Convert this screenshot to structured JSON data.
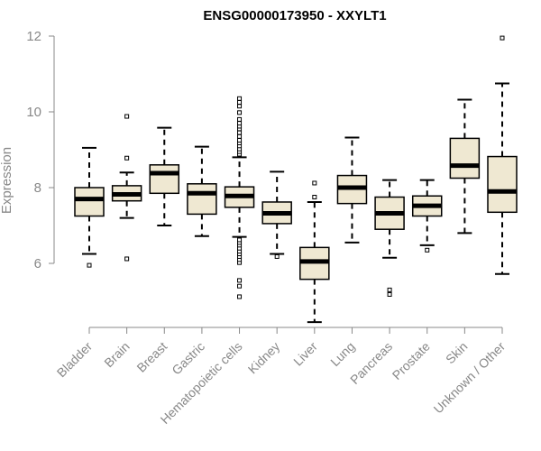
{
  "chart_data": {
    "type": "boxplot",
    "title": "ENSG00000173950 - XXYLT1",
    "xlabel": "",
    "ylabel": "Expression",
    "ylim": [
      4.4,
      12.2
    ],
    "yticks": [
      6,
      8,
      10,
      12
    ],
    "grid": false,
    "colors": {
      "box_fill": "#efe8d2",
      "box_stroke": "#000000",
      "median": "#000000",
      "axis": "#888888",
      "tick_text": "#888888"
    },
    "categories": [
      "Bladder",
      "Brain",
      "Breast",
      "Gastric",
      "Hematopoietic cells",
      "Kidney",
      "Liver",
      "Lung",
      "Pancreas",
      "Prostate",
      "Skin",
      "Unknown / Other"
    ],
    "boxes": [
      {
        "category": "Bladder",
        "whisker_low": 6.25,
        "q1": 7.25,
        "median": 7.7,
        "q3": 8.0,
        "whisker_high": 9.05,
        "outliers": [
          5.95
        ]
      },
      {
        "category": "Brain",
        "whisker_low": 7.2,
        "q1": 7.65,
        "median": 7.82,
        "q3": 8.05,
        "whisker_high": 8.4,
        "outliers": [
          6.12,
          8.78,
          9.88
        ]
      },
      {
        "category": "Breast",
        "whisker_low": 7.0,
        "q1": 7.85,
        "median": 8.38,
        "q3": 8.6,
        "whisker_high": 9.58,
        "outliers": []
      },
      {
        "category": "Gastric",
        "whisker_low": 6.72,
        "q1": 7.3,
        "median": 7.85,
        "q3": 8.1,
        "whisker_high": 9.08,
        "outliers": []
      },
      {
        "category": "Hematopoietic cells",
        "whisker_low": 6.7,
        "q1": 7.48,
        "median": 7.78,
        "q3": 8.02,
        "whisker_high": 8.8,
        "outliers": [
          5.12,
          5.4,
          5.55,
          6.02,
          6.1,
          6.18,
          6.25,
          6.32,
          6.4,
          6.48,
          6.55,
          6.62,
          8.88,
          8.95,
          9.02,
          9.1,
          9.18,
          9.25,
          9.35,
          9.45,
          9.55,
          9.62,
          9.7,
          9.8,
          9.98,
          10.15,
          10.25,
          10.35
        ]
      },
      {
        "category": "Kidney",
        "whisker_low": 6.25,
        "q1": 7.05,
        "median": 7.32,
        "q3": 7.62,
        "whisker_high": 8.42,
        "outliers": [
          6.18
        ]
      },
      {
        "category": "Liver",
        "whisker_low": 4.45,
        "q1": 5.58,
        "median": 6.05,
        "q3": 6.42,
        "whisker_high": 7.62,
        "outliers": [
          7.75,
          8.12
        ]
      },
      {
        "category": "Lung",
        "whisker_low": 6.55,
        "q1": 7.58,
        "median": 8.0,
        "q3": 8.32,
        "whisker_high": 9.32,
        "outliers": []
      },
      {
        "category": "Pancreas",
        "whisker_low": 6.15,
        "q1": 6.9,
        "median": 7.32,
        "q3": 7.75,
        "whisker_high": 8.2,
        "outliers": [
          5.18,
          5.3
        ]
      },
      {
        "category": "Prostate",
        "whisker_low": 6.48,
        "q1": 7.25,
        "median": 7.52,
        "q3": 7.78,
        "whisker_high": 8.2,
        "outliers": [
          6.35
        ]
      },
      {
        "category": "Skin",
        "whisker_low": 6.8,
        "q1": 8.25,
        "median": 8.58,
        "q3": 9.3,
        "whisker_high": 10.32,
        "outliers": []
      },
      {
        "category": "Unknown / Other",
        "whisker_low": 5.72,
        "q1": 7.35,
        "median": 7.9,
        "q3": 8.82,
        "whisker_high": 10.75,
        "outliers": [
          11.95
        ]
      }
    ]
  }
}
